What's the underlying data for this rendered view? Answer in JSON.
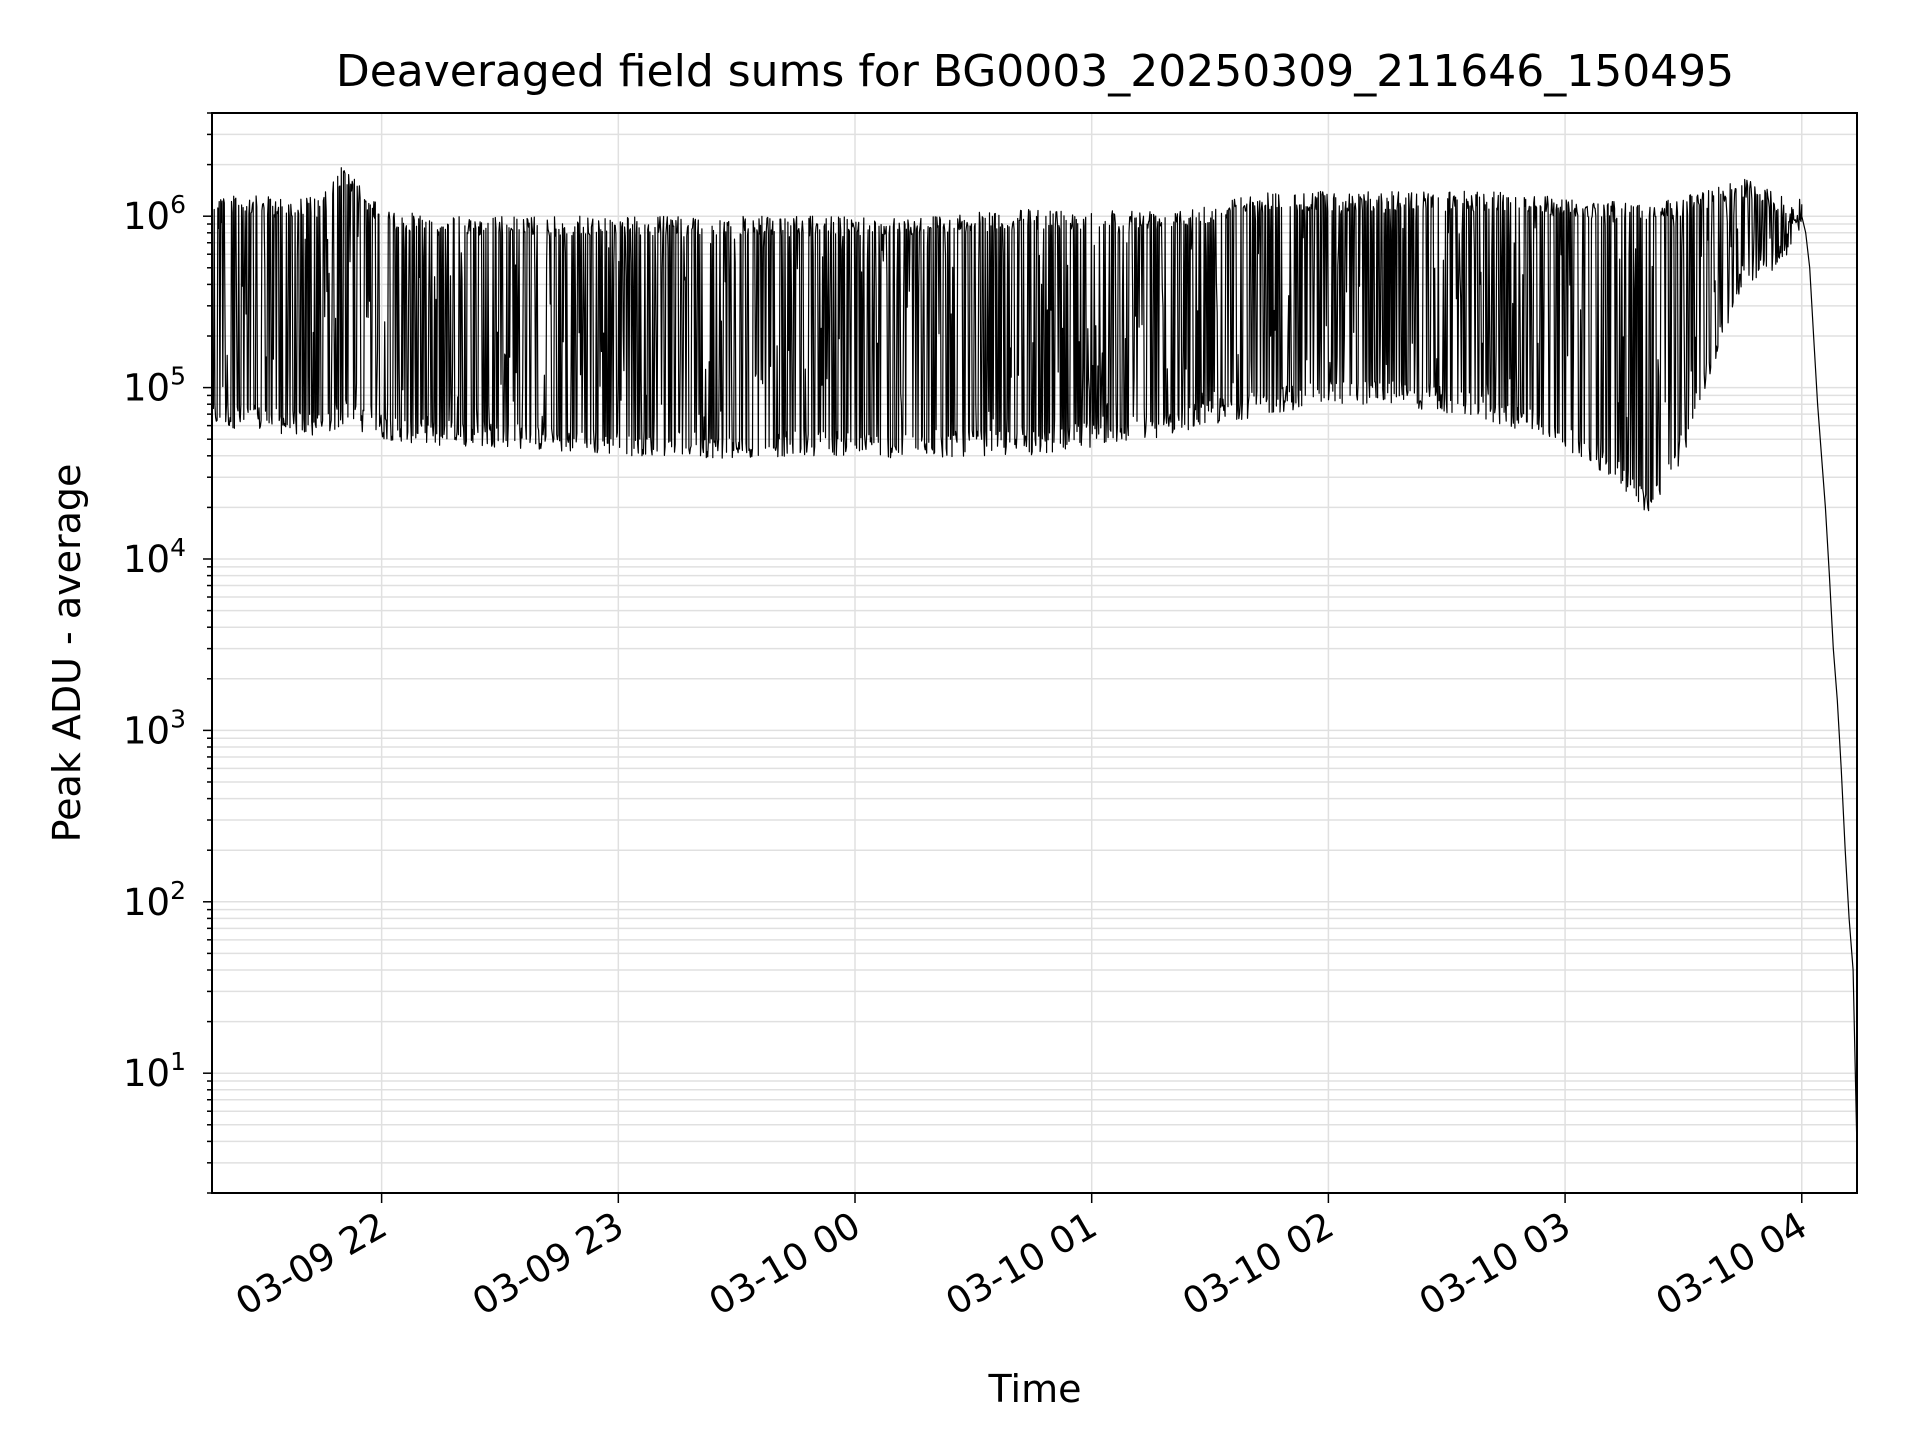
{
  "chart_data": {
    "type": "line",
    "title": "Deaveraged field sums for BG0003_20250309_211646_150495",
    "xlabel": "Time",
    "ylabel": "Peak ADU - average",
    "yscale": "log",
    "ylim": [
      2,
      4000000
    ],
    "xlim": [
      "2025-03-09 21:17",
      "2025-03-10 04:14"
    ],
    "grid": true,
    "line_color": "#000000",
    "grid_color": "#e0e0e0",
    "x_ticks": [
      {
        "value": "2025-03-09 22:00",
        "label": "03-09 22"
      },
      {
        "value": "2025-03-09 23:00",
        "label": "03-09 23"
      },
      {
        "value": "2025-03-10 00:00",
        "label": "03-10 00"
      },
      {
        "value": "2025-03-10 01:00",
        "label": "03-10 01"
      },
      {
        "value": "2025-03-10 02:00",
        "label": "03-10 02"
      },
      {
        "value": "2025-03-10 03:00",
        "label": "03-10 03"
      },
      {
        "value": "2025-03-10 04:00",
        "label": "03-10 04"
      }
    ],
    "y_ticks": [
      {
        "value": 10,
        "base": "10",
        "exp": "1"
      },
      {
        "value": 100,
        "base": "10",
        "exp": "2"
      },
      {
        "value": 1000,
        "base": "10",
        "exp": "3"
      },
      {
        "value": 10000,
        "base": "10",
        "exp": "4"
      },
      {
        "value": 100000,
        "base": "10",
        "exp": "5"
      },
      {
        "value": 1000000,
        "base": "10",
        "exp": "6"
      }
    ],
    "series": [
      {
        "envelope": [
          {
            "t": "2025-03-09 21:17",
            "high": 1400000,
            "low": 60000
          },
          {
            "t": "2025-03-09 21:30",
            "high": 1300000,
            "low": 55000
          },
          {
            "t": "2025-03-09 21:45",
            "high": 1300000,
            "low": 50000
          },
          {
            "t": "2025-03-09 21:50",
            "high": 2000000,
            "low": 60000
          },
          {
            "t": "2025-03-09 22:00",
            "high": 1100000,
            "low": 50000
          },
          {
            "t": "2025-03-09 22:15",
            "high": 1000000,
            "low": 45000
          },
          {
            "t": "2025-03-09 22:30",
            "high": 1000000,
            "low": 45000
          },
          {
            "t": "2025-03-09 22:45",
            "high": 1000000,
            "low": 42000
          },
          {
            "t": "2025-03-09 23:00",
            "high": 1000000,
            "low": 40000
          },
          {
            "t": "2025-03-09 23:15",
            "high": 1000000,
            "low": 40000
          },
          {
            "t": "2025-03-09 23:30",
            "high": 1000000,
            "low": 38000
          },
          {
            "t": "2025-03-09 23:45",
            "high": 1000000,
            "low": 40000
          },
          {
            "t": "2025-03-10 00:00",
            "high": 1000000,
            "low": 40000
          },
          {
            "t": "2025-03-10 00:15",
            "high": 1000000,
            "low": 38000
          },
          {
            "t": "2025-03-10 00:30",
            "high": 1050000,
            "low": 40000
          },
          {
            "t": "2025-03-10 00:45",
            "high": 1100000,
            "low": 40000
          },
          {
            "t": "2025-03-10 01:00",
            "high": 1100000,
            "low": 45000
          },
          {
            "t": "2025-03-10 01:15",
            "high": 1100000,
            "low": 50000
          },
          {
            "t": "2025-03-10 01:30",
            "high": 1200000,
            "low": 60000
          },
          {
            "t": "2025-03-10 01:45",
            "high": 1400000,
            "low": 70000
          },
          {
            "t": "2025-03-10 02:00",
            "high": 1400000,
            "low": 80000
          },
          {
            "t": "2025-03-10 02:15",
            "high": 1400000,
            "low": 80000
          },
          {
            "t": "2025-03-10 02:30",
            "high": 1400000,
            "low": 70000
          },
          {
            "t": "2025-03-10 02:45",
            "high": 1400000,
            "low": 60000
          },
          {
            "t": "2025-03-10 03:00",
            "high": 1300000,
            "low": 45000
          },
          {
            "t": "2025-03-10 03:15",
            "high": 1200000,
            "low": 25000
          },
          {
            "t": "2025-03-10 03:22",
            "high": 1200000,
            "low": 17000
          },
          {
            "t": "2025-03-10 03:30",
            "high": 1300000,
            "low": 40000
          },
          {
            "t": "2025-03-10 03:45",
            "high": 1700000,
            "low": 400000
          },
          {
            "t": "2025-03-10 03:55",
            "high": 1300000,
            "low": 500000
          },
          {
            "t": "2025-03-10 04:00",
            "high": 1000000,
            "low": 1000000
          }
        ],
        "decline": [
          {
            "t": "2025-03-10 04:00",
            "y": 1000000
          },
          {
            "t": "2025-03-10 04:01",
            "y": 800000
          },
          {
            "t": "2025-03-10 04:02",
            "y": 500000
          },
          {
            "t": "2025-03-10 04:03",
            "y": 200000
          },
          {
            "t": "2025-03-10 04:04",
            "y": 80000
          },
          {
            "t": "2025-03-10 04:05",
            "y": 40000
          },
          {
            "t": "2025-03-10 04:06",
            "y": 20000
          },
          {
            "t": "2025-03-10 04:07",
            "y": 8000
          },
          {
            "t": "2025-03-10 04:08",
            "y": 3000
          },
          {
            "t": "2025-03-10 04:09",
            "y": 1500
          },
          {
            "t": "2025-03-10 04:10",
            "y": 600
          },
          {
            "t": "2025-03-10 04:11",
            "y": 200
          },
          {
            "t": "2025-03-10 04:12",
            "y": 80
          },
          {
            "t": "2025-03-10 04:13",
            "y": 40
          },
          {
            "t": "2025-03-10 04:14",
            "y": 3.5
          }
        ]
      }
    ]
  }
}
